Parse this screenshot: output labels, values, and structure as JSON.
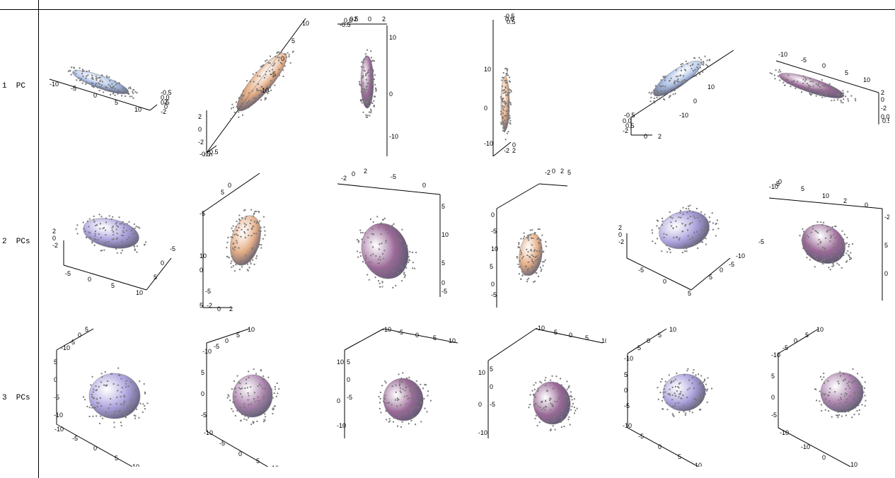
{
  "row_labels": [
    "1  PC",
    "2  PCs",
    "3  PCs"
  ],
  "colors": {
    "blue_ellipsoid": "#9fb6e2",
    "orange_ellipsoid": "#e2a071",
    "purple_ellipsoid": "#8a4f86",
    "bluepurple_ellipsoid": "#9f92d8",
    "mauve_ellipsoid": "#9d6ea0",
    "points": "#7a7a7a",
    "axes": "#000000"
  },
  "panels": [
    [
      {
        "fill": "blue_ellipsoid",
        "ticks": [
          "-10",
          "-5",
          "0",
          "5",
          "10",
          "-0.5",
          "0.0",
          "0.5",
          "-2",
          "0",
          "2"
        ]
      },
      {
        "fill": "orange_ellipsoid",
        "ticks": [
          "10",
          "5",
          "0",
          "-5",
          "-10",
          "2",
          "0",
          "-2",
          "-0.5",
          "0.0",
          "0.5"
        ]
      },
      {
        "fill": "purple_ellipsoid",
        "ticks": [
          "-2",
          "0",
          "2",
          "-0.5",
          "0.0",
          "0.5",
          "10",
          "0",
          "-10"
        ]
      },
      {
        "fill": "orange_ellipsoid",
        "ticks": [
          "-0.5",
          "0.0",
          "0.5",
          "10",
          "0",
          "-10",
          "-2",
          "0",
          "2"
        ]
      },
      {
        "fill": "blue_ellipsoid",
        "ticks": [
          "10",
          "0",
          "-10",
          "-0.5",
          "0.0",
          "0.5",
          "-2",
          "0",
          "2"
        ]
      },
      {
        "fill": "purple_ellipsoid",
        "ticks": [
          "-10",
          "-5",
          "0",
          "5",
          "10",
          "2",
          "0",
          "-2",
          "0.0",
          "0.5"
        ]
      }
    ],
    [
      {
        "fill": "bluepurple_ellipsoid",
        "ticks": [
          "2",
          "0",
          "-2",
          "-5",
          "0",
          "5",
          "10",
          "5",
          "0",
          "-5"
        ]
      },
      {
        "fill": "orange_ellipsoid",
        "ticks": [
          "5",
          "0",
          "-5",
          "10",
          "5",
          "0",
          "-5",
          "-2",
          "0",
          "2"
        ]
      },
      {
        "fill": "purple_ellipsoid",
        "ticks": [
          "-2",
          "0",
          "2",
          "-5",
          "0",
          "5",
          "10",
          "5",
          "0",
          "-5"
        ]
      },
      {
        "fill": "orange_ellipsoid",
        "ticks": [
          "-2",
          "0",
          "2",
          "5",
          "0",
          "-5",
          "10",
          "5",
          "0",
          "-5"
        ]
      },
      {
        "fill": "bluepurple_ellipsoid",
        "ticks": [
          "2",
          "0",
          "-2",
          "-5",
          "0",
          "5",
          "5",
          "0",
          "-5",
          "-10"
        ]
      },
      {
        "fill": "purple_ellipsoid",
        "ticks": [
          "-10",
          "-5",
          "0",
          "5",
          "10",
          "2",
          "0",
          "-2",
          "5",
          "0",
          "-5"
        ]
      }
    ],
    [
      {
        "fill": "bluepurple_ellipsoid",
        "ticks": [
          "5",
          "0",
          "-5",
          "-10",
          "5",
          "0",
          "-5",
          "-10",
          "-10",
          "-5",
          "0",
          "5",
          "10"
        ]
      },
      {
        "fill": "mauve_ellipsoid",
        "ticks": [
          "10",
          "5",
          "0",
          "-5",
          "-10",
          "5",
          "0",
          "-5",
          "-10",
          "-5",
          "0",
          "5",
          "10"
        ]
      },
      {
        "fill": "purple_ellipsoid",
        "ticks": [
          "-10",
          "-5",
          "0",
          "5",
          "10",
          "5",
          "0",
          "-5",
          "10",
          "0",
          "-10"
        ]
      },
      {
        "fill": "purple_ellipsoid",
        "ticks": [
          "-10",
          "-5",
          "0",
          "5",
          "10",
          "5",
          "0",
          "-5",
          "10",
          "0",
          "-10"
        ]
      },
      {
        "fill": "bluepurple_ellipsoid",
        "ticks": [
          "10",
          "5",
          "0",
          "-5",
          "-10",
          "5",
          "0",
          "-5",
          "-10",
          "-5",
          "0",
          "5",
          "10"
        ]
      },
      {
        "fill": "mauve_ellipsoid",
        "ticks": [
          "10",
          "5",
          "0",
          "-5",
          "-10",
          "5",
          "0",
          "-5",
          "-10",
          "-10",
          "0",
          "10"
        ]
      }
    ]
  ]
}
